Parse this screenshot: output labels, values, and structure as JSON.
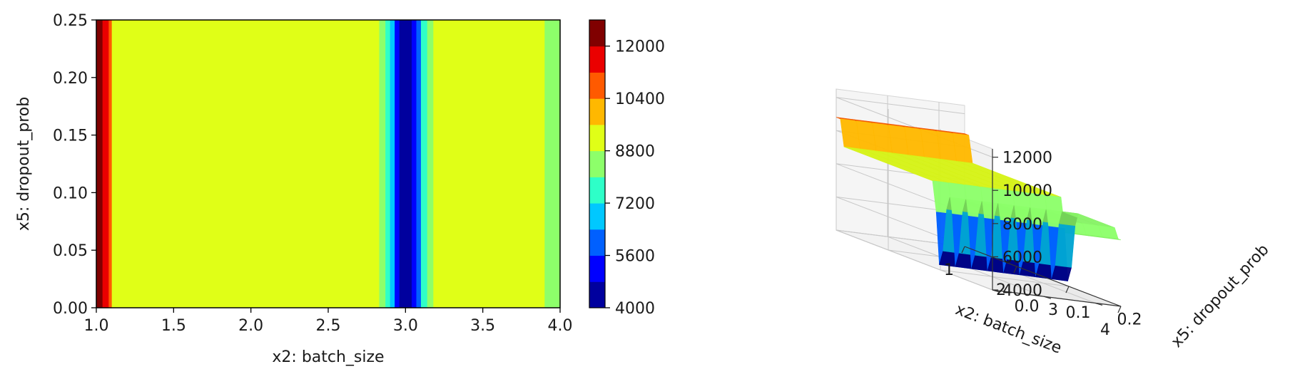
{
  "chart_data": [
    {
      "type": "heatmap",
      "subtype": "filled-contour",
      "xlabel": "x2: batch_size",
      "ylabel": "x5: dropout_prob",
      "xlim": [
        1.0,
        4.0
      ],
      "ylim": [
        0.0,
        0.25
      ],
      "xticks": [
        "1.0",
        "1.5",
        "2.0",
        "2.5",
        "3.0",
        "3.5",
        "4.0"
      ],
      "yticks": [
        "0.00",
        "0.05",
        "0.10",
        "0.15",
        "0.20",
        "0.25"
      ],
      "colormap": "jet",
      "colorbar": {
        "levels": [
          4000,
          4800,
          5600,
          6400,
          7200,
          8000,
          8800,
          9600,
          10400,
          11200,
          12000,
          12800
        ],
        "ticks": [
          "4000",
          "5600",
          "7200",
          "8800",
          "10400",
          "12000"
        ],
        "colors": [
          "#00009e",
          "#0000ff",
          "#0060ff",
          "#00c8ff",
          "#2effc8",
          "#8dff6a",
          "#e0ff17",
          "#ffb800",
          "#ff5a00",
          "#ea0000",
          "#800000"
        ]
      },
      "bands": [
        {
          "x": [
            1.0,
            1.04
          ],
          "value": 12500
        },
        {
          "x": [
            1.04,
            1.08
          ],
          "value": 11700
        },
        {
          "x": [
            1.08,
            1.1
          ],
          "value": 10900
        },
        {
          "x": [
            1.1,
            1.14
          ],
          "value": 9400
        },
        {
          "x": [
            1.14,
            2.83
          ],
          "value": 9200
        },
        {
          "x": [
            2.83,
            2.87
          ],
          "value": 8200
        },
        {
          "x": [
            2.87,
            2.9
          ],
          "value": 7600
        },
        {
          "x": [
            2.9,
            2.93
          ],
          "value": 6800
        },
        {
          "x": [
            2.93,
            2.96
          ],
          "value": 5000
        },
        {
          "x": [
            2.96,
            3.04
          ],
          "value": 4400
        },
        {
          "x": [
            3.04,
            3.07
          ],
          "value": 5000
        },
        {
          "x": [
            3.07,
            3.1
          ],
          "value": 6000
        },
        {
          "x": [
            3.1,
            3.14
          ],
          "value": 7600
        },
        {
          "x": [
            3.14,
            3.18
          ],
          "value": 8400
        },
        {
          "x": [
            3.18,
            3.9
          ],
          "value": 9200
        },
        {
          "x": [
            3.9,
            4.0
          ],
          "value": 8400
        }
      ]
    },
    {
      "type": "surface3d",
      "xlabel": "x2: batch_size",
      "ylabel": "x5: dropout_prob",
      "xticks": [
        "1",
        "2",
        "3",
        "4"
      ],
      "yticks": [
        "0.0",
        "0.1",
        "0.2"
      ],
      "zticks": [
        "4000",
        "6000",
        "8000",
        "10000",
        "12000"
      ],
      "xlim": [
        1,
        4
      ],
      "ylim": [
        0.0,
        0.25
      ],
      "zlim": [
        4000,
        12500
      ],
      "profile": [
        {
          "x": 1.0,
          "z": 10800
        },
        {
          "x": 1.08,
          "z": 10800
        },
        {
          "x": 1.15,
          "z": 9200
        },
        {
          "x": 2.85,
          "z": 9200
        },
        {
          "x": 2.92,
          "z": 7400
        },
        {
          "x": 2.98,
          "z": 4300
        },
        {
          "x": 3.05,
          "z": 5200
        },
        {
          "x": 3.12,
          "z": 7800
        },
        {
          "x": 3.18,
          "z": 8600
        },
        {
          "x": 3.88,
          "z": 8600
        },
        {
          "x": 3.95,
          "z": 8000
        },
        {
          "x": 4.0,
          "z": 8000
        }
      ]
    }
  ]
}
